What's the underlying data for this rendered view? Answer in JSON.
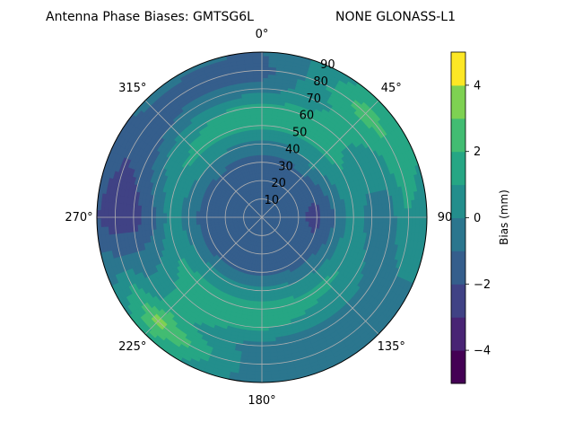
{
  "title": "Antenna Phase Biases: GMTSG6L",
  "subtitle": "NONE GLONASS-L1",
  "chart_data": {
    "type": "heatmap",
    "projection": "polar",
    "theta_zero_location": "top",
    "theta_direction": "clockwise",
    "radial_axis": {
      "label": "",
      "range": [
        0,
        90
      ],
      "ticks": [
        10,
        20,
        30,
        40,
        50,
        60,
        70,
        80,
        90
      ],
      "tick_labels": [
        "10",
        "20",
        "30",
        "40",
        "50",
        "60",
        "70",
        "80",
        "90"
      ]
    },
    "angular_axis": {
      "ticks": [
        0,
        45,
        90,
        135,
        180,
        225,
        270,
        315
      ],
      "tick_labels": [
        "0°",
        "45°",
        "90",
        "135°",
        "180°",
        "225°",
        "270°",
        "315°"
      ]
    },
    "grid": true,
    "colorbar": {
      "label": "Bias (mm)",
      "colormap": "viridis",
      "range": [
        -5,
        5
      ],
      "levels": [
        -5,
        -4,
        -3,
        -2,
        -1,
        0,
        1,
        2,
        3,
        4,
        5
      ],
      "ticks": [
        -4,
        -2,
        0,
        2,
        4
      ],
      "tick_labels": [
        "−4",
        "−2",
        "0",
        "2",
        "4"
      ]
    },
    "bias_field_mm": {
      "zenith_angles": [
        0,
        10,
        20,
        30,
        40,
        50,
        60,
        70,
        80,
        90
      ],
      "azimuths": [
        0,
        45,
        90,
        135,
        180,
        225,
        270,
        315
      ],
      "values": [
        [
          -1.0,
          -1.0,
          -1.0,
          -1.0,
          -1.0,
          -1.0,
          -1.0,
          -1.0
        ],
        [
          -1.1,
          -1.1,
          -1.2,
          -1.1,
          -1.1,
          -1.1,
          -1.3,
          -1.1
        ],
        [
          -1.3,
          -1.2,
          -1.8,
          -1.3,
          -1.3,
          -1.3,
          -1.5,
          -1.3
        ],
        [
          -1.5,
          -1.4,
          -2.4,
          -1.5,
          -1.4,
          -1.5,
          -1.6,
          -1.4
        ],
        [
          -0.5,
          0.2,
          -1.0,
          -0.2,
          0.5,
          0.3,
          -0.5,
          0.1
        ],
        [
          1.5,
          1.3,
          0.5,
          1.2,
          1.5,
          1.5,
          0.5,
          1.3
        ],
        [
          1.5,
          1.2,
          -0.5,
          0.5,
          1.2,
          1.5,
          -1.5,
          0.7
        ],
        [
          -0.5,
          1.5,
          -0.5,
          -0.3,
          -0.5,
          1.5,
          -2.5,
          -1.0
        ],
        [
          -1.5,
          2.5,
          1.0,
          -1.0,
          -1.0,
          3.5,
          -3.0,
          -1.2
        ],
        [
          -1.0,
          1.5,
          0.5,
          -0.5,
          -0.5,
          1.5,
          -2.0,
          -0.8
        ]
      ]
    }
  }
}
